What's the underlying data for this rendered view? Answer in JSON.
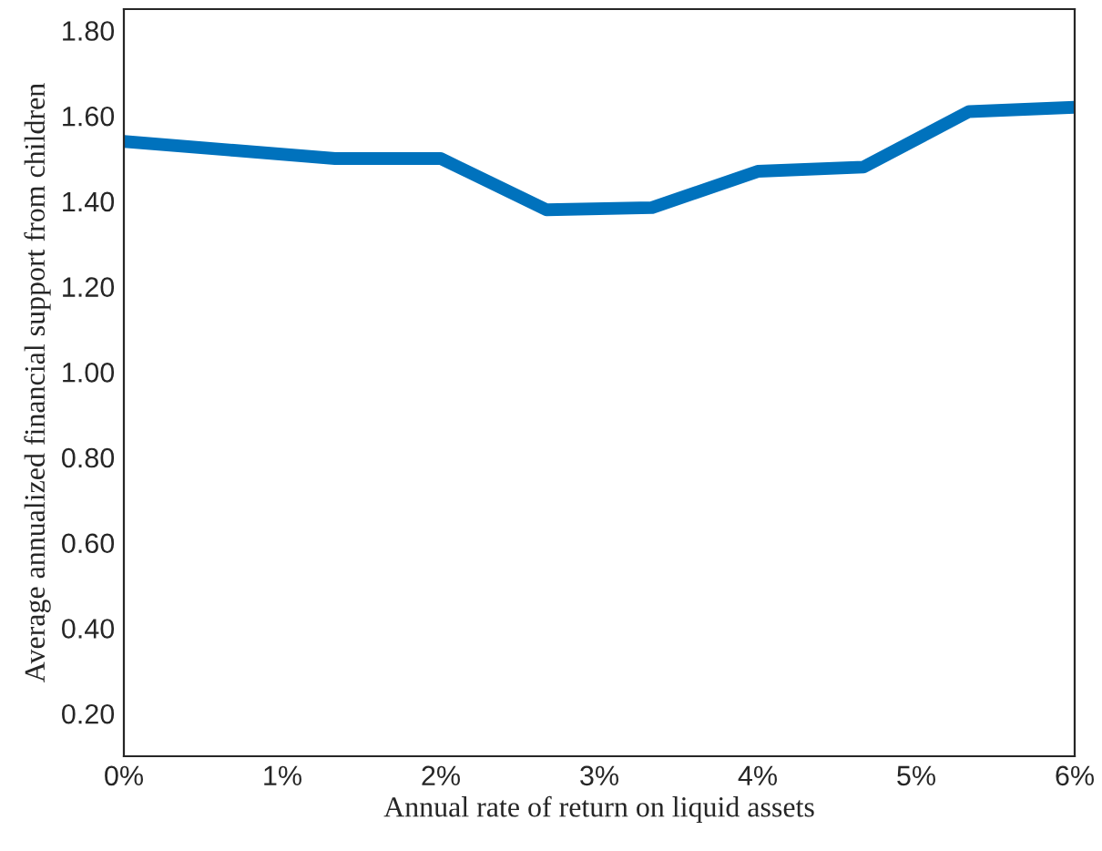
{
  "chart_data": {
    "type": "line",
    "xlabel": "Annual rate of return on liquid assets",
    "ylabel": "Average annualized financial support from children",
    "x": [
      0,
      0.667,
      1.333,
      2,
      2.667,
      3.333,
      4,
      4.667,
      5.333,
      6
    ],
    "series": [
      {
        "color": "#0072bd",
        "values": [
          1.54,
          1.52,
          1.5,
          1.5,
          1.38,
          1.385,
          1.47,
          1.48,
          1.61,
          1.62
        ]
      }
    ],
    "xlim": [
      0,
      6
    ],
    "xticks": [
      {
        "value": 0,
        "label": "0%"
      },
      {
        "value": 1,
        "label": "1%"
      },
      {
        "value": 2,
        "label": "2%"
      },
      {
        "value": 3,
        "label": "3%"
      },
      {
        "value": 4,
        "label": "4%"
      },
      {
        "value": 5,
        "label": "5%"
      },
      {
        "value": 6,
        "label": "6%"
      }
    ],
    "ylim": [
      0.1,
      1.85
    ],
    "yticks": [
      {
        "value": 0.2,
        "label": "0.20"
      },
      {
        "value": 0.4,
        "label": "0.40"
      },
      {
        "value": 0.6,
        "label": "0.60"
      },
      {
        "value": 0.8,
        "label": "0.80"
      },
      {
        "value": 1.0,
        "label": "1.00"
      },
      {
        "value": 1.2,
        "label": "1.20"
      },
      {
        "value": 1.4,
        "label": "1.40"
      },
      {
        "value": 1.6,
        "label": "1.60"
      },
      {
        "value": 1.8,
        "label": "1.80"
      }
    ],
    "grid": false,
    "line_style": "solid"
  }
}
